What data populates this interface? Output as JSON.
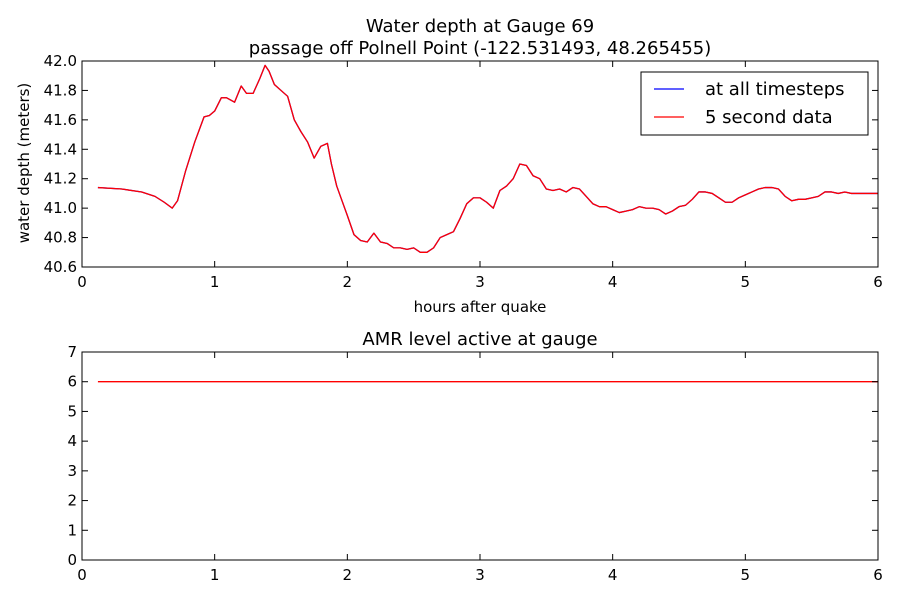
{
  "chart_data": [
    {
      "type": "line",
      "title": "Water depth at Gauge 69",
      "subtitle": "passage off Polnell Point  (-122.531493, 48.265455)",
      "xlabel": "hours after quake",
      "ylabel": "water depth (meters)",
      "xlim": [
        0,
        6
      ],
      "ylim": [
        40.6,
        42.0
      ],
      "xticks": [
        "0",
        "1",
        "2",
        "3",
        "4",
        "5",
        "6"
      ],
      "yticks": [
        "40.6",
        "40.8",
        "41.0",
        "41.2",
        "41.4",
        "41.6",
        "41.8",
        "42.0"
      ],
      "grid": false,
      "legend_position": "top-right",
      "series": [
        {
          "name": "at all timesteps",
          "color": "#0000ff",
          "x": [
            0.12,
            0.3,
            0.45,
            0.55,
            0.62,
            0.68,
            0.72,
            0.78,
            0.85,
            0.92,
            0.96,
            1.0,
            1.05,
            1.09,
            1.15,
            1.2,
            1.24,
            1.29,
            1.34,
            1.38,
            1.41,
            1.45,
            1.5,
            1.55,
            1.6,
            1.65,
            1.7,
            1.75,
            1.8,
            1.85,
            1.88,
            1.92,
            1.96,
            2.0,
            2.05,
            2.1,
            2.15,
            2.2,
            2.25,
            2.3,
            2.35,
            2.4,
            2.45,
            2.5,
            2.55,
            2.6,
            2.65,
            2.7,
            2.75,
            2.8,
            2.85,
            2.9,
            2.95,
            3.0,
            3.05,
            3.1,
            3.15,
            3.2,
            3.25,
            3.3,
            3.35,
            3.4,
            3.45,
            3.5,
            3.55,
            3.6,
            3.65,
            3.7,
            3.75,
            3.8,
            3.85,
            3.9,
            3.95,
            4.0,
            4.05,
            4.1,
            4.15,
            4.2,
            4.25,
            4.3,
            4.35,
            4.4,
            4.45,
            4.5,
            4.55,
            4.6,
            4.65,
            4.7,
            4.75,
            4.8,
            4.85,
            4.9,
            4.95,
            5.0,
            5.05,
            5.1,
            5.15,
            5.2,
            5.25,
            5.3,
            5.35,
            5.4,
            5.45,
            5.5,
            5.55,
            5.6,
            5.65,
            5.7,
            5.75,
            5.8,
            5.85,
            5.9,
            6.0
          ],
          "y": [
            41.14,
            41.13,
            41.11,
            41.08,
            41.04,
            41.0,
            41.05,
            41.25,
            41.45,
            41.62,
            41.63,
            41.66,
            41.75,
            41.75,
            41.72,
            41.83,
            41.78,
            41.78,
            41.88,
            41.97,
            41.93,
            41.84,
            41.8,
            41.76,
            41.6,
            41.52,
            41.45,
            41.34,
            41.42,
            41.44,
            41.3,
            41.15,
            41.05,
            40.95,
            40.82,
            40.78,
            40.77,
            40.83,
            40.77,
            40.76,
            40.73,
            40.73,
            40.72,
            40.73,
            40.7,
            40.7,
            40.73,
            40.8,
            40.82,
            40.84,
            40.93,
            41.03,
            41.07,
            41.07,
            41.04,
            41.0,
            41.12,
            41.15,
            41.2,
            41.3,
            41.29,
            41.22,
            41.2,
            41.13,
            41.12,
            41.13,
            41.11,
            41.14,
            41.13,
            41.08,
            41.03,
            41.01,
            41.01,
            40.99,
            40.97,
            40.98,
            40.99,
            41.01,
            41.0,
            41.0,
            40.99,
            40.96,
            40.98,
            41.01,
            41.02,
            41.06,
            41.11,
            41.11,
            41.1,
            41.07,
            41.04,
            41.04,
            41.07,
            41.09,
            41.11,
            41.13,
            41.14,
            41.14,
            41.13,
            41.08,
            41.05,
            41.06,
            41.06,
            41.07,
            41.08,
            41.11,
            41.11,
            41.1,
            41.11,
            41.1,
            41.1,
            41.1,
            41.1
          ]
        },
        {
          "name": "5 second data",
          "color": "#ff0000",
          "x": [
            0.12,
            0.3,
            0.45,
            0.55,
            0.62,
            0.68,
            0.72,
            0.78,
            0.85,
            0.92,
            0.96,
            1.0,
            1.05,
            1.09,
            1.15,
            1.2,
            1.24,
            1.29,
            1.34,
            1.38,
            1.41,
            1.45,
            1.5,
            1.55,
            1.6,
            1.65,
            1.7,
            1.75,
            1.8,
            1.85,
            1.88,
            1.92,
            1.96,
            2.0,
            2.05,
            2.1,
            2.15,
            2.2,
            2.25,
            2.3,
            2.35,
            2.4,
            2.45,
            2.5,
            2.55,
            2.6,
            2.65,
            2.7,
            2.75,
            2.8,
            2.85,
            2.9,
            2.95,
            3.0,
            3.05,
            3.1,
            3.15,
            3.2,
            3.25,
            3.3,
            3.35,
            3.4,
            3.45,
            3.5,
            3.55,
            3.6,
            3.65,
            3.7,
            3.75,
            3.8,
            3.85,
            3.9,
            3.95,
            4.0,
            4.05,
            4.1,
            4.15,
            4.2,
            4.25,
            4.3,
            4.35,
            4.4,
            4.45,
            4.5,
            4.55,
            4.6,
            4.65,
            4.7,
            4.75,
            4.8,
            4.85,
            4.9,
            4.95,
            5.0,
            5.05,
            5.1,
            5.15,
            5.2,
            5.25,
            5.3,
            5.35,
            5.4,
            5.45,
            5.5,
            5.55,
            5.6,
            5.65,
            5.7,
            5.75,
            5.8,
            5.85,
            5.9,
            6.0
          ],
          "y": [
            41.14,
            41.13,
            41.11,
            41.08,
            41.04,
            41.0,
            41.05,
            41.25,
            41.45,
            41.62,
            41.63,
            41.66,
            41.75,
            41.75,
            41.72,
            41.83,
            41.78,
            41.78,
            41.88,
            41.97,
            41.93,
            41.84,
            41.8,
            41.76,
            41.6,
            41.52,
            41.45,
            41.34,
            41.42,
            41.44,
            41.3,
            41.15,
            41.05,
            40.95,
            40.82,
            40.78,
            40.77,
            40.83,
            40.77,
            40.76,
            40.73,
            40.73,
            40.72,
            40.73,
            40.7,
            40.7,
            40.73,
            40.8,
            40.82,
            40.84,
            40.93,
            41.03,
            41.07,
            41.07,
            41.04,
            41.0,
            41.12,
            41.15,
            41.2,
            41.3,
            41.29,
            41.22,
            41.2,
            41.13,
            41.12,
            41.13,
            41.11,
            41.14,
            41.13,
            41.08,
            41.03,
            41.01,
            41.01,
            40.99,
            40.97,
            40.98,
            40.99,
            41.01,
            41.0,
            41.0,
            40.99,
            40.96,
            40.98,
            41.01,
            41.02,
            41.06,
            41.11,
            41.11,
            41.1,
            41.07,
            41.04,
            41.04,
            41.07,
            41.09,
            41.11,
            41.13,
            41.14,
            41.14,
            41.13,
            41.08,
            41.05,
            41.06,
            41.06,
            41.07,
            41.08,
            41.11,
            41.11,
            41.1,
            41.11,
            41.1,
            41.1,
            41.1,
            41.1
          ]
        }
      ]
    },
    {
      "type": "line",
      "title": "AMR level active at gauge",
      "xlabel": "",
      "ylabel": "",
      "xlim": [
        0,
        6
      ],
      "ylim": [
        0,
        7
      ],
      "xticks": [
        "0",
        "1",
        "2",
        "3",
        "4",
        "5",
        "6"
      ],
      "yticks": [
        "0",
        "1",
        "2",
        "3",
        "4",
        "5",
        "6",
        "7"
      ],
      "grid": false,
      "series": [
        {
          "color": "#ff0000",
          "x": [
            0.12,
            6.0
          ],
          "y": [
            6,
            6
          ]
        }
      ]
    }
  ]
}
